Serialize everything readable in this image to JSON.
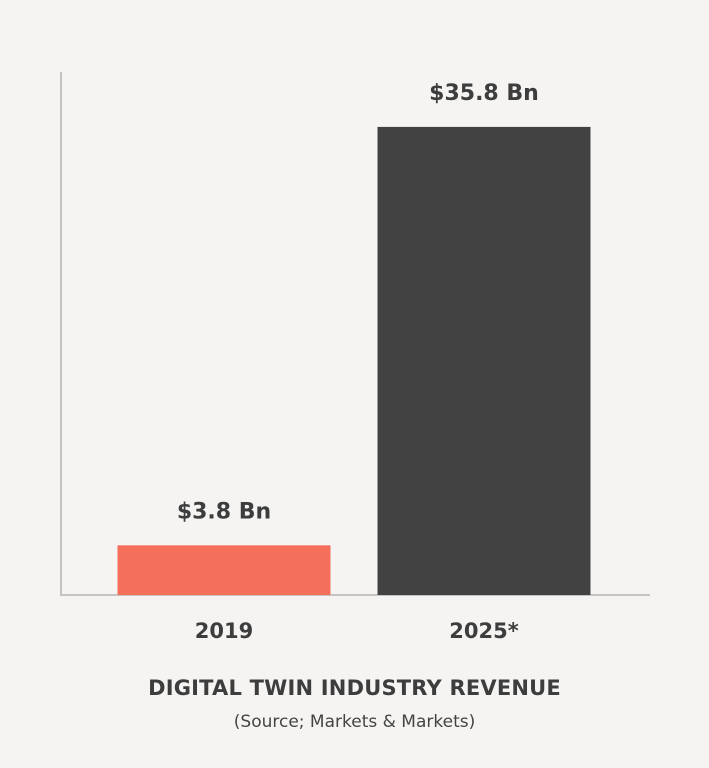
{
  "chart_data": {
    "type": "bar",
    "title": "DIGITAL TWIN INDUSTRY REVENUE",
    "subtitle": "(Source; Markets & Markets)",
    "categories": [
      "2019",
      "2025*"
    ],
    "values": [
      3.8,
      35.8
    ],
    "value_labels": [
      "$3.8 Bn",
      "$35.8 Bn"
    ],
    "colors": [
      "#f4705a",
      "#424242"
    ],
    "xlabel": "",
    "ylabel": "",
    "ylim": [
      0,
      40
    ],
    "grid": false,
    "legend": "none"
  }
}
